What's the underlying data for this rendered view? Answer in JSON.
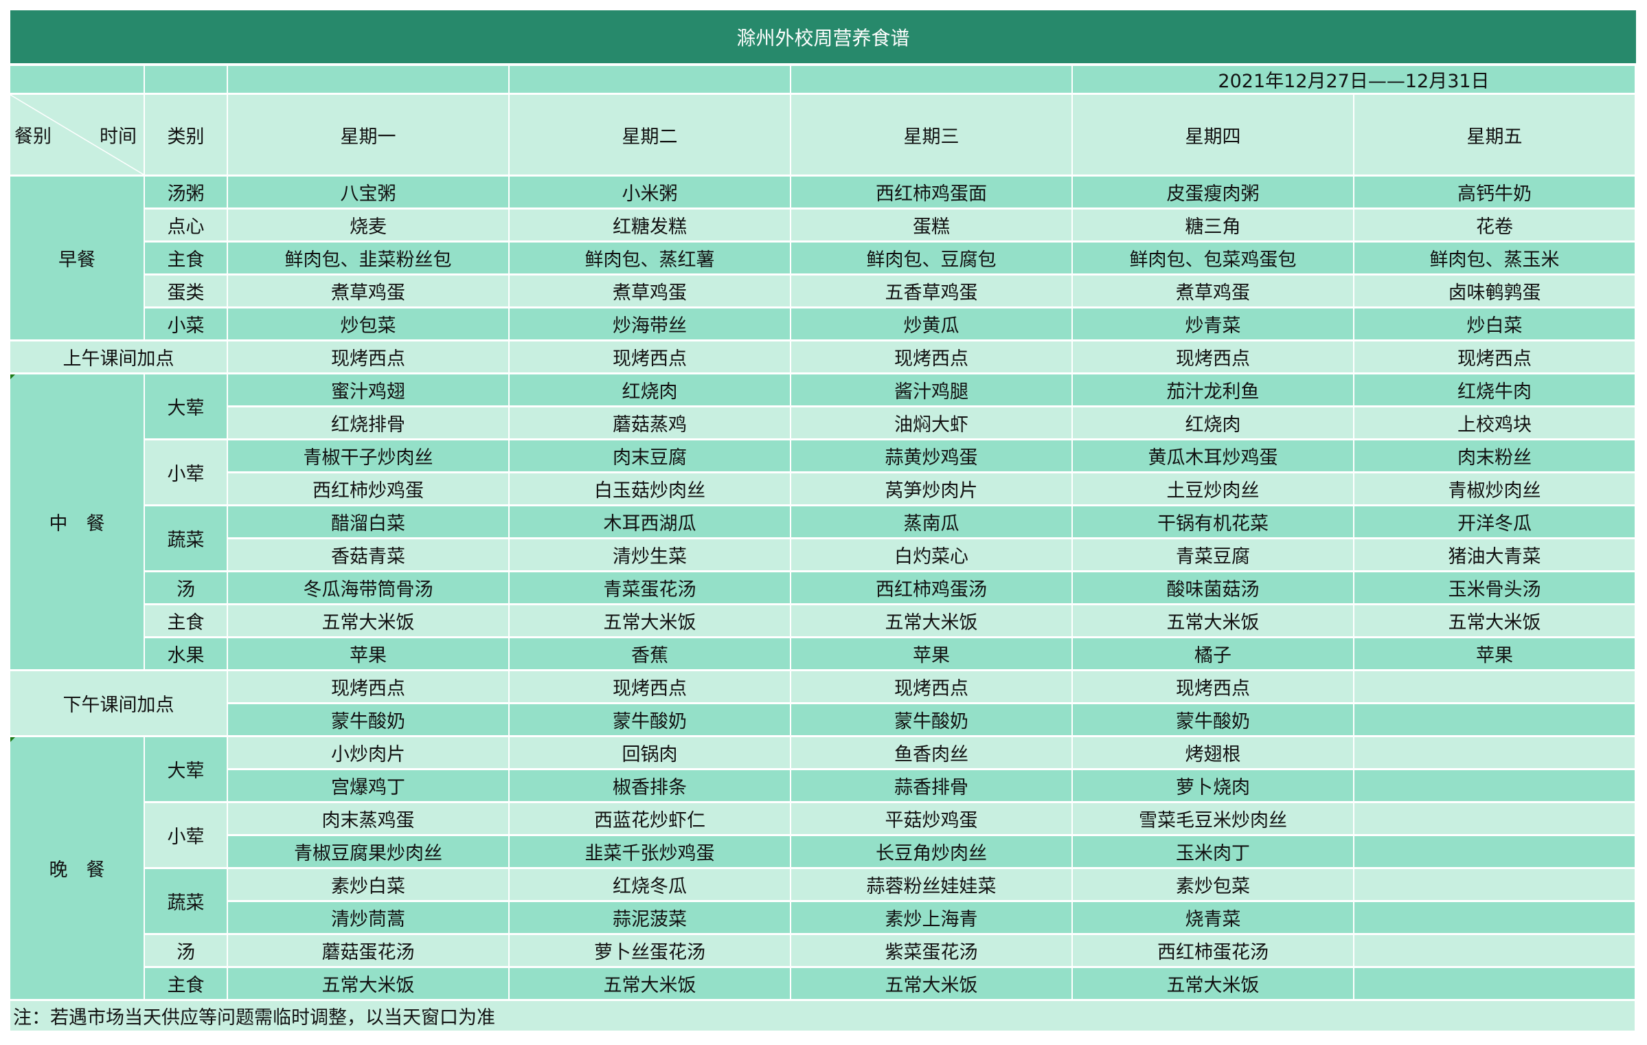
{
  "title": "滁州外校周营养食谱",
  "date_range": "2021年12月27日——12月31日",
  "header": {
    "meal_label": "餐别",
    "time_label": "时间",
    "category_label": "类别",
    "days": [
      "星期一",
      "星期二",
      "星期三",
      "星期四",
      "星期五"
    ]
  },
  "sections": [
    {
      "meal": "早餐",
      "groups": [
        {
          "category": "汤粥",
          "rows": [
            [
              "八宝粥",
              "小米粥",
              "西红柿鸡蛋面",
              "皮蛋瘦肉粥",
              "高钙牛奶"
            ]
          ]
        },
        {
          "category": "点心",
          "rows": [
            [
              "烧麦",
              "红糖发糕",
              "蛋糕",
              "糖三角",
              "花卷"
            ]
          ]
        },
        {
          "category": "主食",
          "rows": [
            [
              "鲜肉包、韭菜粉丝包",
              "鲜肉包、蒸红薯",
              "鲜肉包、豆腐包",
              "鲜肉包、包菜鸡蛋包",
              "鲜肉包、蒸玉米"
            ]
          ]
        },
        {
          "category": "蛋类",
          "rows": [
            [
              "煮草鸡蛋",
              "煮草鸡蛋",
              "五香草鸡蛋",
              "煮草鸡蛋",
              "卤味鹌鹑蛋"
            ]
          ]
        },
        {
          "category": "小菜",
          "rows": [
            [
              "炒包菜",
              "炒海带丝",
              "炒黄瓜",
              "炒青菜",
              "炒白菜"
            ]
          ]
        }
      ]
    },
    {
      "meal": "上午课间加点",
      "groups": [
        {
          "category": null,
          "rows": [
            [
              "现烤西点",
              "现烤西点",
              "现烤西点",
              "现烤西点",
              "现烤西点"
            ]
          ]
        }
      ]
    },
    {
      "meal": "中　餐",
      "groups": [
        {
          "category": "大荤",
          "rows": [
            [
              "蜜汁鸡翅",
              "红烧肉",
              "酱汁鸡腿",
              "茄汁龙利鱼",
              "红烧牛肉"
            ],
            [
              "红烧排骨",
              "蘑菇蒸鸡",
              "油焖大虾",
              "红烧肉",
              "上校鸡块"
            ]
          ]
        },
        {
          "category": "小荤",
          "rows": [
            [
              "青椒干子炒肉丝",
              "肉末豆腐",
              "蒜黄炒鸡蛋",
              "黄瓜木耳炒鸡蛋",
              "肉末粉丝"
            ],
            [
              "西红柿炒鸡蛋",
              "白玉菇炒肉丝",
              "莴笋炒肉片",
              "土豆炒肉丝",
              "青椒炒肉丝"
            ]
          ]
        },
        {
          "category": "蔬菜",
          "rows": [
            [
              "醋溜白菜",
              "木耳西湖瓜",
              "蒸南瓜",
              "干锅有机花菜",
              "开洋冬瓜"
            ],
            [
              "香菇青菜",
              "清炒生菜",
              "白灼菜心",
              "青菜豆腐",
              "猪油大青菜"
            ]
          ]
        },
        {
          "category": "汤",
          "rows": [
            [
              "冬瓜海带筒骨汤",
              "青菜蛋花汤",
              "西红柿鸡蛋汤",
              "酸味菌菇汤",
              "玉米骨头汤"
            ]
          ]
        },
        {
          "category": "主食",
          "rows": [
            [
              "五常大米饭",
              "五常大米饭",
              "五常大米饭",
              "五常大米饭",
              "五常大米饭"
            ]
          ]
        },
        {
          "category": "水果",
          "rows": [
            [
              "苹果",
              "香蕉",
              "苹果",
              "橘子",
              "苹果"
            ]
          ]
        }
      ]
    },
    {
      "meal": "下午课间加点",
      "groups": [
        {
          "category": null,
          "rows": [
            [
              "现烤西点",
              "现烤西点",
              "现烤西点",
              "现烤西点",
              ""
            ],
            [
              "蒙牛酸奶",
              "蒙牛酸奶",
              "蒙牛酸奶",
              "蒙牛酸奶",
              ""
            ]
          ]
        }
      ]
    },
    {
      "meal": "晚　餐",
      "groups": [
        {
          "category": "大荤",
          "rows": [
            [
              "小炒肉片",
              "回锅肉",
              "鱼香肉丝",
              "烤翅根",
              ""
            ],
            [
              "宫爆鸡丁",
              "椒香排条",
              "蒜香排骨",
              "萝卜烧肉",
              ""
            ]
          ]
        },
        {
          "category": "小荤",
          "rows": [
            [
              "肉末蒸鸡蛋",
              "西蓝花炒虾仁",
              "平菇炒鸡蛋",
              "雪菜毛豆米炒肉丝",
              ""
            ],
            [
              "青椒豆腐果炒肉丝",
              "韭菜千张炒鸡蛋",
              "长豆角炒肉丝",
              "玉米肉丁",
              ""
            ]
          ]
        },
        {
          "category": "蔬菜",
          "rows": [
            [
              "素炒白菜",
              "红烧冬瓜",
              "蒜蓉粉丝娃娃菜",
              "素炒包菜",
              ""
            ],
            [
              "清炒茼蒿",
              "蒜泥菠菜",
              "素炒上海青",
              "烧青菜",
              ""
            ]
          ]
        },
        {
          "category": "汤",
          "rows": [
            [
              "蘑菇蛋花汤",
              "萝卜丝蛋花汤",
              "紫菜蛋花汤",
              "西红柿蛋花汤",
              ""
            ]
          ]
        },
        {
          "category": "主食",
          "rows": [
            [
              "五常大米饭",
              "五常大米饭",
              "五常大米饭",
              "五常大米饭",
              ""
            ]
          ]
        }
      ]
    }
  ],
  "note": "注：若遇市场当天供应等问题需临时调整，以当天窗口为准",
  "colors": {
    "title_bg": "#27896b",
    "row_dark": "#94e0c8",
    "row_light": "#c8efe0"
  }
}
